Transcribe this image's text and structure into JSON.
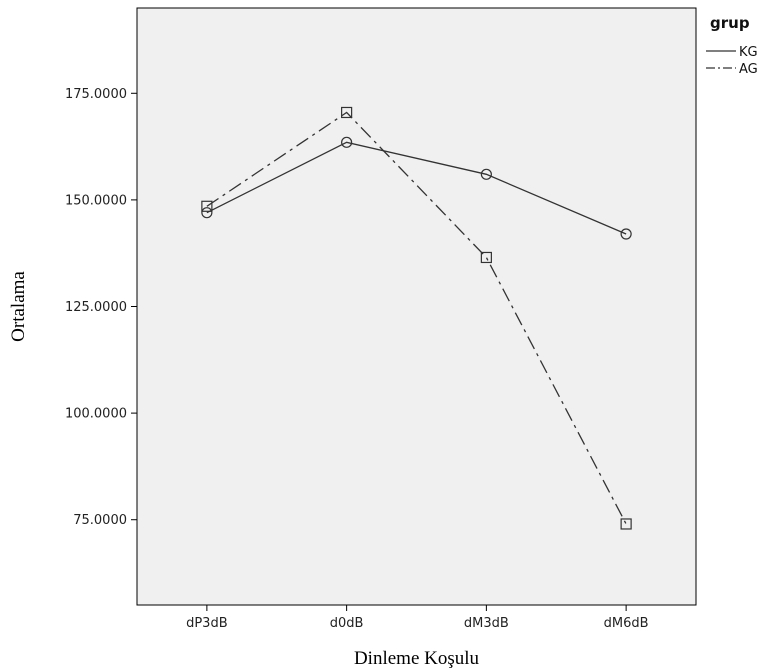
{
  "chart_data": {
    "type": "line",
    "categories": [
      "dP3dB",
      "d0dB",
      "dM3dB",
      "dM6dB"
    ],
    "series": [
      {
        "name": "KG",
        "values": [
          147.0,
          163.5,
          156.0,
          142.0
        ],
        "line_style": "solid",
        "marker": "circle"
      },
      {
        "name": "AG",
        "values": [
          148.5,
          170.5,
          136.5,
          74.0
        ],
        "line_style": "dash-dot",
        "marker": "square"
      }
    ],
    "xlabel": "Dinleme Koşulu",
    "ylabel": "Ortalama",
    "ylim": [
      55,
      195
    ],
    "yticks": [
      75,
      100,
      125,
      150,
      175
    ],
    "ytick_labels": [
      "75.0000",
      "100.0000",
      "125.0000",
      "150.0000",
      "175.0000"
    ],
    "legend_title": "grup",
    "legend_position": "right",
    "grid": false,
    "colors": {
      "plot_bg": "#f0f0f0",
      "line": "#333333",
      "axis": "#000000"
    }
  }
}
